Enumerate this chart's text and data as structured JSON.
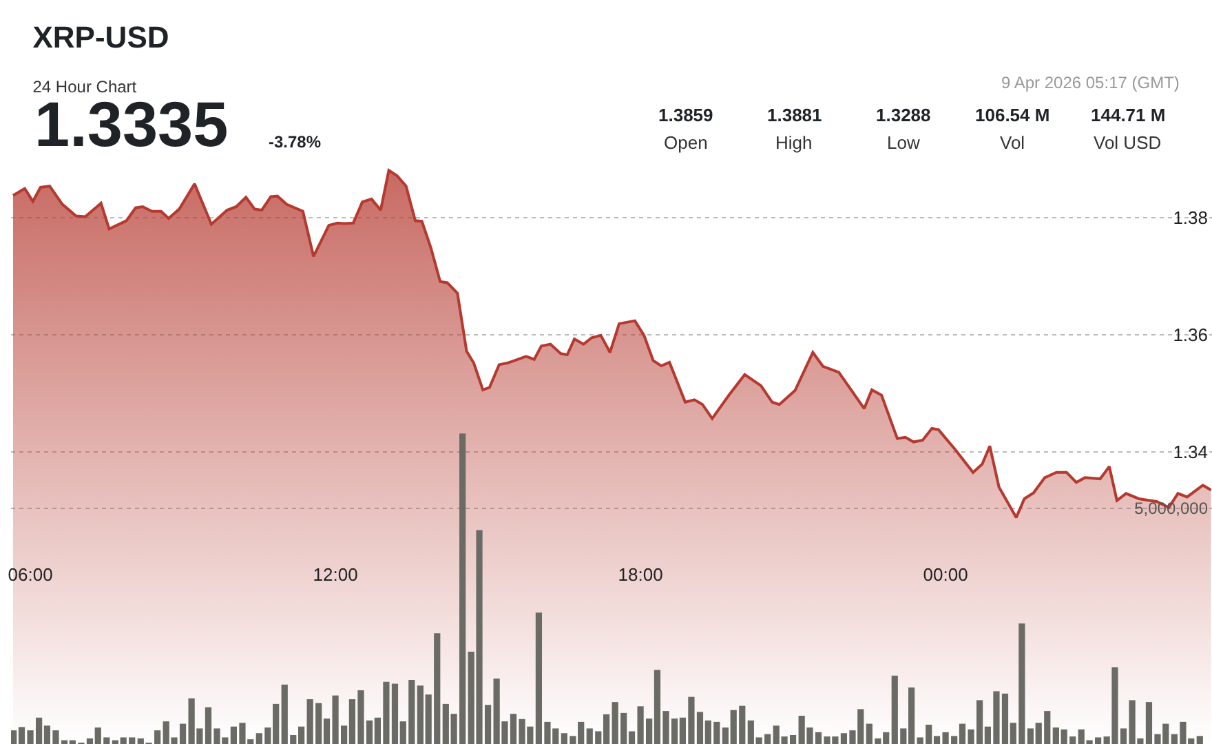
{
  "chart_data": {
    "type": "area",
    "title": "XRP-USD",
    "subtitle": "24 Hour Chart",
    "annotations": [
      "1.3335",
      "-3.78%",
      "1.3859",
      "Open",
      "1.3881",
      "High",
      "1.3288",
      "Low",
      "106.54 M",
      "Vol",
      "144.71 M",
      "Vol USD",
      "9 Apr 2026 05:17 (GMT)"
    ],
    "xlim": [
      5.62,
      29.24
    ],
    "xticks": [
      {
        "value": 6,
        "label": "06:00"
      },
      {
        "value": 12,
        "label": "12:00"
      },
      {
        "value": 18,
        "label": "18:00"
      },
      {
        "value": 24,
        "label": "00:00"
      }
    ],
    "ylim": [
      1.2901,
      1.4172
    ],
    "yticks": [
      1.34,
      1.36,
      1.38
    ],
    "y2lim": [
      0,
      15790000
    ],
    "y2ticks": [
      {
        "value": 5000000,
        "label": "5,000,000"
      }
    ],
    "grid": "y",
    "marker": "none",
    "series": [
      {
        "color": "#b5392f",
        "x": [
          5.66,
          5.89,
          6.05,
          6.2,
          6.38,
          6.63,
          6.9,
          7.08,
          7.39,
          7.55,
          7.89,
          8.07,
          8.21,
          8.39,
          8.57,
          8.72,
          8.93,
          9.23,
          9.56,
          9.87,
          10.05,
          10.24,
          10.41,
          10.55,
          10.73,
          10.86,
          11.04,
          11.36,
          11.57,
          11.87,
          12.04,
          12.17,
          12.35,
          12.53,
          12.71,
          12.89,
          13.05,
          13.21,
          13.39,
          13.57,
          13.7,
          13.88,
          14.06,
          14.2,
          14.4,
          14.58,
          14.72,
          14.9,
          15.03,
          15.22,
          15.39,
          15.75,
          15.91,
          16.05,
          16.23,
          16.43,
          16.56,
          16.7,
          16.88,
          17.04,
          17.22,
          17.4,
          17.58,
          17.89,
          18.07,
          18.25,
          18.41,
          18.57,
          18.88,
          19.06,
          19.22,
          19.41,
          19.74,
          20.05,
          20.37,
          20.59,
          20.73,
          21.04,
          21.39,
          21.59,
          21.9,
          22.4,
          22.55,
          22.74,
          23.05,
          23.21,
          23.37,
          23.55,
          23.73,
          23.86,
          24.2,
          24.54,
          24.72,
          24.87,
          25.05,
          25.39,
          25.55,
          25.73,
          25.95,
          26.18,
          26.38,
          26.57,
          26.74,
          27.04,
          27.22,
          27.37,
          27.55,
          27.8,
          28.16,
          28.39,
          28.57,
          28.75,
          29.06,
          29.22
        ],
        "values": [
          1.3838,
          1.385,
          1.3828,
          1.3852,
          1.3854,
          1.3823,
          1.3803,
          1.3802,
          1.3825,
          1.3781,
          1.3795,
          1.3817,
          1.3819,
          1.3811,
          1.3811,
          1.3799,
          1.3815,
          1.3858,
          1.3789,
          1.3813,
          1.3819,
          1.3835,
          1.3815,
          1.3813,
          1.3836,
          1.3837,
          1.3823,
          1.3811,
          1.3734,
          1.3787,
          1.3791,
          1.379,
          1.3791,
          1.3827,
          1.3832,
          1.3813,
          1.3881,
          1.3872,
          1.3854,
          1.3795,
          1.3794,
          1.3748,
          1.3691,
          1.3689,
          1.3671,
          1.3572,
          1.3552,
          1.3506,
          1.351,
          1.3549,
          1.3552,
          1.3563,
          1.3558,
          1.3581,
          1.3584,
          1.3568,
          1.3566,
          1.3593,
          1.3584,
          1.3595,
          1.3599,
          1.357,
          1.3619,
          1.3624,
          1.3599,
          1.3556,
          1.3547,
          1.3553,
          1.3485,
          1.3489,
          1.3481,
          1.3457,
          1.3497,
          1.3532,
          1.3513,
          1.3485,
          1.3481,
          1.3505,
          1.357,
          1.3546,
          1.3536,
          1.3474,
          1.3506,
          1.3497,
          1.3423,
          1.3425,
          1.3417,
          1.342,
          1.344,
          1.3438,
          1.3403,
          1.3365,
          1.3379,
          1.341,
          1.334,
          1.3288,
          1.332,
          1.333,
          1.3356,
          1.3365,
          1.3365,
          1.3348,
          1.3356,
          1.3354,
          1.3375,
          1.3317,
          1.3329,
          1.332,
          1.3315,
          1.3305,
          1.3329,
          1.3323,
          1.3343,
          1.3335
        ]
      },
      {
        "type": "bar",
        "axis": "y2",
        "color": "#6b6b66",
        "x": [
          5.67,
          5.83,
          6.0,
          6.17,
          6.33,
          6.5,
          6.67,
          6.83,
          7.0,
          7.17,
          7.33,
          7.5,
          7.67,
          7.83,
          8.0,
          8.17,
          8.33,
          8.5,
          8.67,
          8.83,
          9.0,
          9.17,
          9.33,
          9.5,
          9.67,
          9.83,
          10.0,
          10.17,
          10.33,
          10.5,
          10.67,
          10.83,
          11.0,
          11.17,
          11.33,
          11.5,
          11.67,
          11.83,
          12.0,
          12.17,
          12.33,
          12.5,
          12.67,
          12.83,
          13.0,
          13.17,
          13.33,
          13.5,
          13.67,
          13.83,
          14.0,
          14.17,
          14.33,
          14.5,
          14.67,
          14.83,
          15.0,
          15.17,
          15.33,
          15.5,
          15.67,
          15.83,
          16.0,
          16.17,
          16.33,
          16.5,
          16.67,
          16.83,
          17.0,
          17.17,
          17.33,
          17.5,
          17.67,
          17.83,
          18.0,
          18.17,
          18.33,
          18.5,
          18.67,
          18.83,
          19.0,
          19.17,
          19.33,
          19.5,
          19.67,
          19.83,
          20.0,
          20.17,
          20.33,
          20.5,
          20.67,
          20.83,
          21.0,
          21.17,
          21.33,
          21.5,
          21.67,
          21.83,
          22.0,
          22.17,
          22.33,
          22.5,
          22.67,
          22.83,
          23.0,
          23.17,
          23.33,
          23.5,
          23.67,
          23.83,
          24.0,
          24.17,
          24.33,
          24.5,
          24.67,
          24.83,
          25.0,
          25.17,
          25.33,
          25.5,
          25.67,
          25.83,
          26.0,
          26.17,
          26.33,
          26.5,
          26.67,
          26.83,
          27.0,
          27.17,
          27.33,
          27.5,
          27.67,
          27.83,
          28.0,
          28.17,
          28.33,
          28.5,
          28.67,
          28.83,
          29.0
        ],
        "values": [
          290000,
          360000,
          290000,
          560000,
          390000,
          290000,
          80000,
          80000,
          20000,
          120000,
          350000,
          140000,
          80000,
          140000,
          140000,
          120000,
          10000,
          290000,
          480000,
          140000,
          430000,
          970000,
          330000,
          780000,
          330000,
          140000,
          370000,
          450000,
          100000,
          230000,
          350000,
          850000,
          1260000,
          190000,
          370000,
          950000,
          870000,
          540000,
          1030000,
          390000,
          950000,
          1140000,
          500000,
          560000,
          1320000,
          1280000,
          480000,
          1360000,
          1240000,
          1050000,
          2350000,
          850000,
          640000,
          6590000,
          1960000,
          4540000,
          830000,
          1390000,
          480000,
          640000,
          530000,
          370000,
          2790000,
          470000,
          330000,
          230000,
          170000,
          470000,
          330000,
          270000,
          630000,
          890000,
          660000,
          270000,
          800000,
          540000,
          1570000,
          700000,
          540000,
          560000,
          1000000,
          680000,
          500000,
          470000,
          350000,
          720000,
          810000,
          500000,
          140000,
          210000,
          390000,
          160000,
          190000,
          600000,
          350000,
          250000,
          160000,
          160000,
          230000,
          290000,
          740000,
          430000,
          120000,
          250000,
          1450000,
          330000,
          1200000,
          140000,
          410000,
          170000,
          250000,
          170000,
          430000,
          310000,
          930000,
          370000,
          1120000,
          1070000,
          450000,
          2560000,
          330000,
          450000,
          700000,
          350000,
          310000,
          160000,
          310000,
          80000,
          140000,
          160000,
          1630000,
          330000,
          930000,
          120000,
          890000,
          210000,
          430000,
          210000,
          470000,
          120000,
          170000
        ]
      }
    ]
  }
}
